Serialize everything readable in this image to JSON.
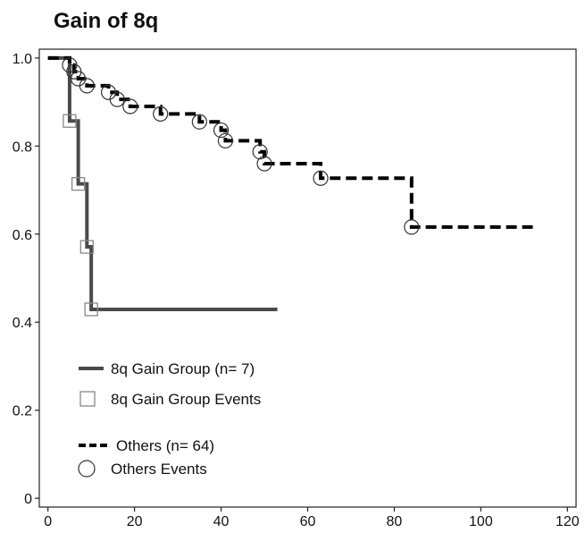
{
  "chart_data": {
    "type": "line",
    "subtype": "kaplan-meier",
    "title": "Gain of 8q",
    "xlabel": "",
    "ylabel": "",
    "xlim": [
      -2,
      122
    ],
    "ylim": [
      -0.02,
      1.02
    ],
    "x_ticks": [
      0,
      20,
      40,
      60,
      80,
      100,
      120
    ],
    "y_ticks": [
      {
        "value": 0,
        "label": "0"
      },
      {
        "value": 0.2,
        "label": "0.2"
      },
      {
        "value": 0.4,
        "label": "0.4"
      },
      {
        "value": 0.6,
        "label": "0.6"
      },
      {
        "value": 0.8,
        "label": "0.8"
      },
      {
        "value": 1.0,
        "label": "1.0"
      }
    ],
    "grid": false,
    "legend_position": "bottom-left",
    "series": [
      {
        "name": "8q Gain Group (n= 7)",
        "events_name": "8q Gain Group Events",
        "color": "#4a4a4a",
        "line_style": "solid",
        "marker": "square",
        "steps": [
          [
            0,
            1.0
          ],
          [
            5,
            0.857
          ],
          [
            7,
            0.714
          ],
          [
            9,
            0.571
          ],
          [
            10,
            0.429
          ],
          [
            53,
            0.429
          ]
        ],
        "events": [
          [
            5,
            0.857
          ],
          [
            7,
            0.714
          ],
          [
            9,
            0.571
          ],
          [
            10,
            0.429
          ]
        ]
      },
      {
        "name": "Others (n= 64)",
        "events_name": "Others Events",
        "color": "#000000",
        "line_style": "dashed",
        "marker": "circle",
        "steps": [
          [
            0,
            1.0
          ],
          [
            5,
            0.984
          ],
          [
            6,
            0.969
          ],
          [
            7,
            0.953
          ],
          [
            9,
            0.937
          ],
          [
            14,
            0.922
          ],
          [
            16,
            0.906
          ],
          [
            19,
            0.89
          ],
          [
            26,
            0.873
          ],
          [
            35,
            0.855
          ],
          [
            40,
            0.836
          ],
          [
            41,
            0.812
          ],
          [
            49,
            0.787
          ],
          [
            50,
            0.76
          ],
          [
            63,
            0.727
          ],
          [
            84,
            0.616
          ],
          [
            112,
            0.616
          ]
        ],
        "events": [
          [
            5,
            0.984
          ],
          [
            6,
            0.969
          ],
          [
            7,
            0.953
          ],
          [
            9,
            0.937
          ],
          [
            14,
            0.922
          ],
          [
            16,
            0.906
          ],
          [
            19,
            0.89
          ],
          [
            26,
            0.873
          ],
          [
            35,
            0.855
          ],
          [
            40,
            0.836
          ],
          [
            41,
            0.812
          ],
          [
            49,
            0.787
          ],
          [
            50,
            0.76
          ],
          [
            63,
            0.727
          ],
          [
            84,
            0.616
          ]
        ]
      }
    ]
  },
  "legend": {
    "items": [
      {
        "label": "8q Gain Group (n= 7)",
        "symbol": "solid-line"
      },
      {
        "label": "8q Gain Group Events",
        "symbol": "square"
      },
      {
        "label": "Others (n= 64)",
        "symbol": "dashed-line"
      },
      {
        "label": "Others Events",
        "symbol": "circle"
      }
    ]
  }
}
